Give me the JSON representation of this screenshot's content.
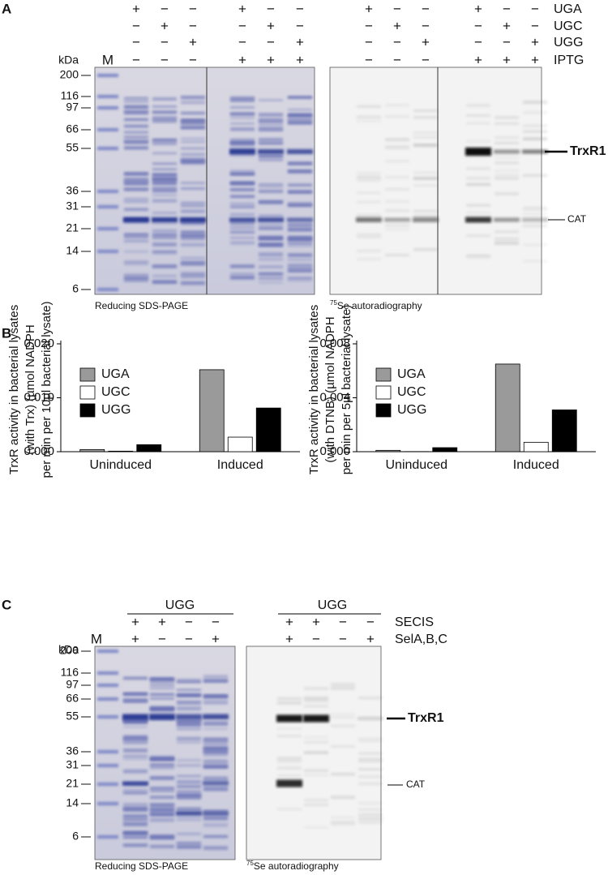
{
  "panel_a": {
    "label": "A",
    "rows": [
      {
        "label": "UGA",
        "signs": [
          "+",
          "−",
          "−",
          "+",
          "−",
          "−",
          "+",
          "−",
          "−",
          "+",
          "−",
          "−"
        ]
      },
      {
        "label": "UGC",
        "signs": [
          "−",
          "+",
          "−",
          "−",
          "+",
          "−",
          "−",
          "+",
          "−",
          "−",
          "+",
          "−"
        ]
      },
      {
        "label": "UGG",
        "signs": [
          "−",
          "−",
          "+",
          "−",
          "−",
          "+",
          "−",
          "−",
          "+",
          "−",
          "−",
          "+"
        ]
      },
      {
        "label": "IPTG",
        "signs": [
          "−",
          "−",
          "−",
          "+",
          "+",
          "+",
          "−",
          "−",
          "−",
          "+",
          "+",
          "+"
        ]
      }
    ],
    "kda_label": "kDa",
    "marker_lane": "M",
    "markers": [
      "200",
      "116",
      "97",
      "66",
      "55",
      "36",
      "31",
      "21",
      "14",
      "6"
    ],
    "band_labels": [
      "TrxR1",
      "CAT"
    ],
    "gel_caption": "Reducing SDS-PAGE",
    "autorad_caption": {
      "superscript": "75",
      "text": "Se autoradiography"
    }
  },
  "panel_b": {
    "label": "B"
  },
  "chart_data": [
    {
      "type": "bar",
      "y_label": [
        "TrxR activity in bacterial lysates",
        "(with Trx)  (µmol NADPH",
        "per min per 10µl bacterial lysate)"
      ],
      "categories": [
        "Uninduced",
        "Induced"
      ],
      "series": [
        {
          "name": "UGA",
          "color": "#9a9a9a",
          "values": [
            0.0004,
            0.0152
          ]
        },
        {
          "name": "UGC",
          "color": "#ffffff",
          "values": [
            0.0001,
            0.0027
          ]
        },
        {
          "name": "UGG",
          "color": "#000000",
          "values": [
            0.0013,
            0.0081
          ]
        }
      ],
      "ylim": [
        0,
        0.02
      ],
      "yticks": [
        {
          "value": 0,
          "label": "0.000"
        },
        {
          "value": 0.01,
          "label": "0.010"
        },
        {
          "value": 0.02,
          "label": "0.020"
        }
      ],
      "legend": "upper-left"
    },
    {
      "type": "bar",
      "y_label": [
        "TrxR activity in bacterial lysates",
        "(with DTNB)  (µmol NADPH",
        "per min per 5µl bacterial lysate)"
      ],
      "categories": [
        "Uninduced",
        "Induced"
      ],
      "series": [
        {
          "name": "UGA",
          "color": "#9a9a9a",
          "values": [
            0.0001,
            0.0065
          ]
        },
        {
          "name": "UGC",
          "color": "#ffffff",
          "values": [
            1e-05,
            0.0007
          ]
        },
        {
          "name": "UGG",
          "color": "#000000",
          "values": [
            0.0003,
            0.0031
          ]
        }
      ],
      "ylim": [
        0,
        0.008
      ],
      "yticks": [
        {
          "value": 0,
          "label": "0.000"
        },
        {
          "value": 0.004,
          "label": "0.004"
        },
        {
          "value": 0.008,
          "label": "0.008"
        }
      ],
      "legend": "upper-left"
    }
  ],
  "panel_c": {
    "label": "C",
    "group_headers": [
      "UGG",
      "UGG"
    ],
    "rows": [
      {
        "label": "SECIS",
        "signs": [
          "+",
          "+",
          "−",
          "−",
          "+",
          "+",
          "−",
          "−"
        ]
      },
      {
        "label": "SelA,B,C",
        "signs": [
          "+",
          "−",
          "−",
          "+",
          "+",
          "−",
          "−",
          "+"
        ]
      }
    ],
    "kda_label": "kDa",
    "marker_lane": "M",
    "markers": [
      "200",
      "116",
      "97",
      "66",
      "55",
      "36",
      "31",
      "21",
      "14",
      "6"
    ],
    "band_labels": [
      "TrxR1",
      "CAT"
    ],
    "gel_caption": "Reducing SDS-PAGE",
    "autorad_caption": {
      "superscript": "75",
      "text": "Se autoradiography"
    }
  }
}
